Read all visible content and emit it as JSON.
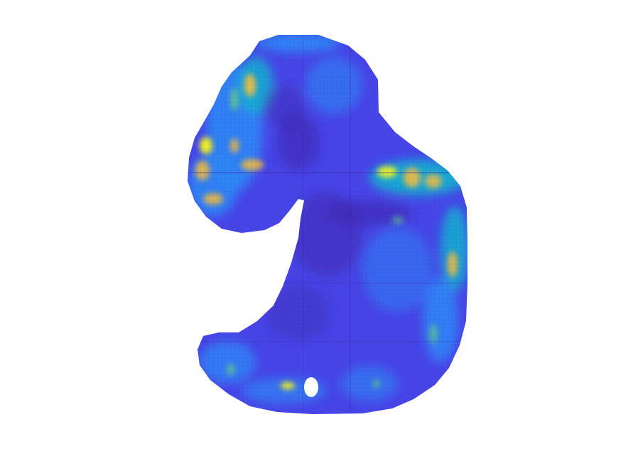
{
  "figure": {
    "colormap": [
      "#3e26a8",
      "#4745e8",
      "#2e87f7",
      "#10b8d0",
      "#5fc98f",
      "#fabd3b",
      "#f9fb15"
    ],
    "background": "#ffffff"
  }
}
